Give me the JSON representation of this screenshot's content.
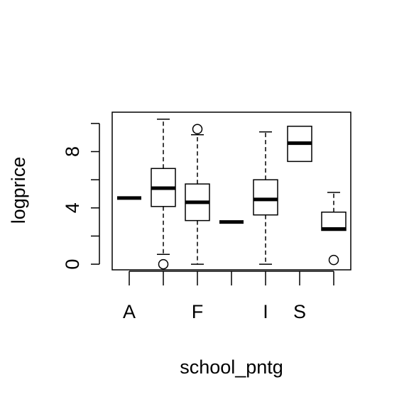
{
  "chart_data": {
    "type": "boxplot",
    "xlabel": "school_pntg",
    "ylabel": "logprice",
    "ylim": [
      -0.4,
      10.8
    ],
    "y_ticks": [
      0,
      2,
      4,
      6,
      8,
      10
    ],
    "y_tick_labels": [
      "0",
      "",
      "4",
      "",
      "8",
      ""
    ],
    "categories": [
      "A",
      "",
      "F",
      "",
      "I",
      "S",
      ""
    ],
    "boxes": [
      {
        "min": 4.7,
        "q1": 4.7,
        "median": 4.7,
        "q3": 4.7,
        "max": 4.7,
        "outliers": []
      },
      {
        "min": 0.7,
        "q1": 4.1,
        "median": 5.4,
        "q3": 6.8,
        "max": 10.3,
        "outliers": [
          0.0
        ]
      },
      {
        "min": 0.0,
        "q1": 3.1,
        "median": 4.4,
        "q3": 5.7,
        "max": 9.2,
        "outliers": [
          9.6
        ]
      },
      {
        "min": 3.0,
        "q1": 3.0,
        "median": 3.0,
        "q3": 3.0,
        "max": 3.0,
        "outliers": []
      },
      {
        "min": 0.0,
        "q1": 3.5,
        "median": 4.6,
        "q3": 6.0,
        "max": 9.4,
        "outliers": []
      },
      {
        "min": 7.3,
        "q1": 7.3,
        "median": 8.6,
        "q3": 9.8,
        "max": 9.8,
        "outliers": []
      },
      {
        "min": 2.4,
        "q1": 2.4,
        "median": 2.5,
        "q3": 3.7,
        "max": 5.1,
        "outliers": [
          0.3
        ]
      }
    ]
  }
}
